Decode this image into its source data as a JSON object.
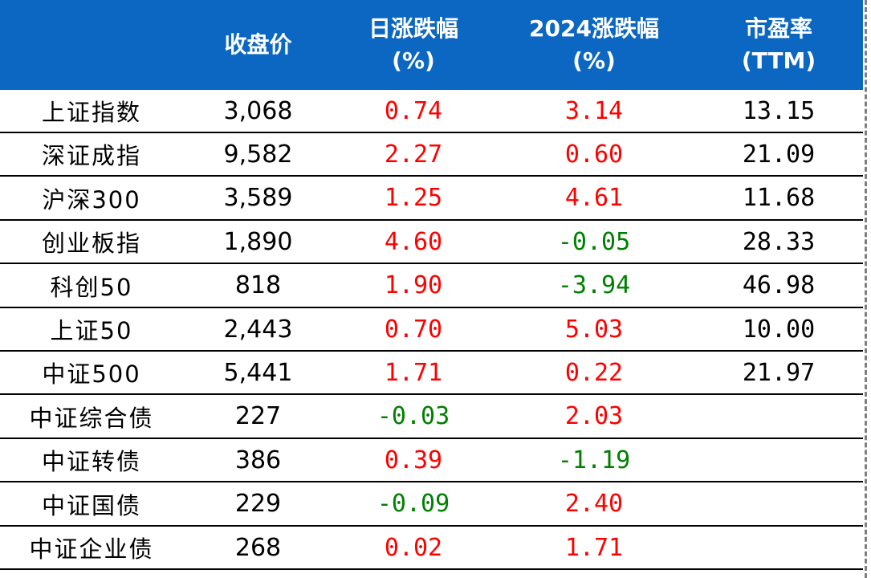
{
  "header": {
    "columns": [
      {
        "line1": "",
        "line2": ""
      },
      {
        "line1": "收盘价",
        "line2": ""
      },
      {
        "line1": "日涨跌幅",
        "line2": "(%)"
      },
      {
        "line1": "2024涨跌幅",
        "line2": "(%)"
      },
      {
        "line1": "市盈率",
        "line2": "(TTM)"
      }
    ]
  },
  "rows": [
    {
      "name": "上证指数",
      "close": "3,068",
      "daily": "0.74",
      "ytd": "3.14",
      "pe": "13.15"
    },
    {
      "name": "深证成指",
      "close": "9,582",
      "daily": "2.27",
      "ytd": "0.60",
      "pe": "21.09"
    },
    {
      "name": "沪深300",
      "close": "3,589",
      "daily": "1.25",
      "ytd": "4.61",
      "pe": "11.68"
    },
    {
      "name": "创业板指",
      "close": "1,890",
      "daily": "4.60",
      "ytd": "-0.05",
      "pe": "28.33"
    },
    {
      "name": "科创50",
      "close": "818",
      "daily": "1.90",
      "ytd": "-3.94",
      "pe": "46.98"
    },
    {
      "name": "上证50",
      "close": "2,443",
      "daily": "0.70",
      "ytd": "5.03",
      "pe": "10.00"
    },
    {
      "name": "中证500",
      "close": "5,441",
      "daily": "1.71",
      "ytd": "0.22",
      "pe": "21.97"
    },
    {
      "name": "中证综合债",
      "close": "227",
      "daily": "-0.03",
      "ytd": "2.03",
      "pe": ""
    },
    {
      "name": "中证转债",
      "close": "386",
      "daily": "0.39",
      "ytd": "-1.19",
      "pe": ""
    },
    {
      "name": "中证国债",
      "close": "229",
      "daily": "-0.09",
      "ytd": "2.40",
      "pe": ""
    },
    {
      "name": "中证企业债",
      "close": "268",
      "daily": "0.02",
      "ytd": "1.71",
      "pe": ""
    }
  ],
  "colors": {
    "header_bg": "#0b67c2",
    "up": "#ff0000",
    "down": "#008000"
  }
}
